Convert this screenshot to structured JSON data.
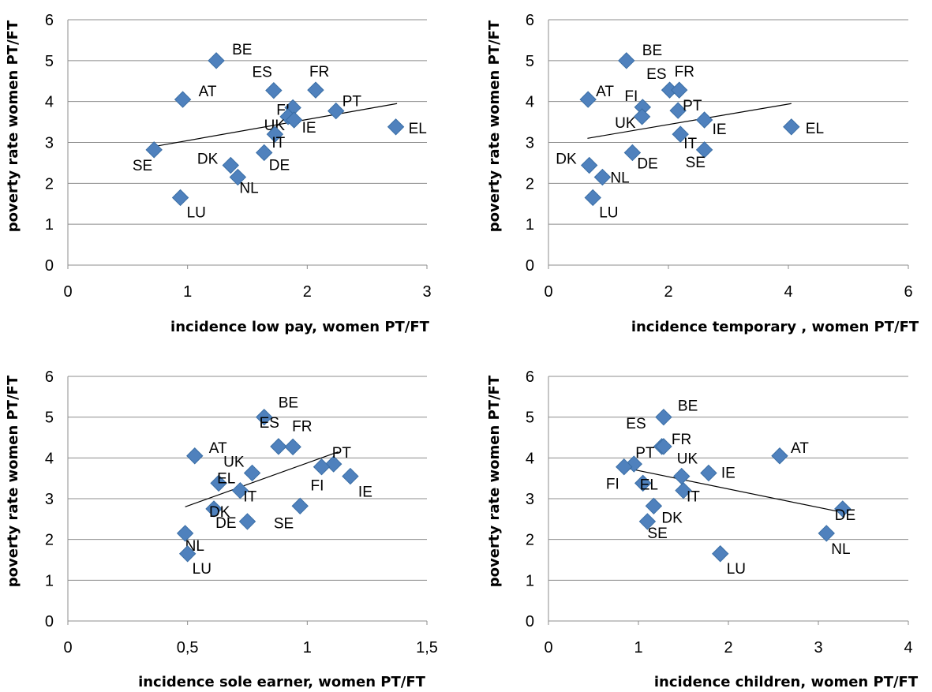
{
  "chart_data": [
    {
      "type": "scatter",
      "xlabel": "incidence low pay, women PT/FT",
      "ylabel": "poverty rate women PT/FT",
      "xlim": [
        0,
        3
      ],
      "ylim": [
        0,
        6
      ],
      "xticks": [
        "0",
        "1",
        "2",
        "3"
      ],
      "yticks": [
        "0",
        "1",
        "2",
        "3",
        "4",
        "5",
        "6"
      ],
      "grid": "horizontal",
      "trendline": [
        [
          0.72,
          2.9
        ],
        [
          2.75,
          3.95
        ]
      ],
      "points": [
        {
          "label": "BE",
          "x": 1.24,
          "y": 5.0
        },
        {
          "label": "AT",
          "x": 0.96,
          "y": 4.05
        },
        {
          "label": "ES",
          "x": 1.72,
          "y": 4.27
        },
        {
          "label": "FR",
          "x": 2.07,
          "y": 4.28
        },
        {
          "label": "FI",
          "x": 1.88,
          "y": 3.85
        },
        {
          "label": "PT",
          "x": 2.24,
          "y": 3.77
        },
        {
          "label": "UK",
          "x": 1.84,
          "y": 3.63
        },
        {
          "label": "IE",
          "x": 1.89,
          "y": 3.55
        },
        {
          "label": "EL",
          "x": 2.74,
          "y": 3.38
        },
        {
          "label": "IT",
          "x": 1.73,
          "y": 3.2
        },
        {
          "label": "SE",
          "x": 0.72,
          "y": 2.82
        },
        {
          "label": "DE",
          "x": 1.64,
          "y": 2.75
        },
        {
          "label": "DK",
          "x": 1.36,
          "y": 2.44
        },
        {
          "label": "NL",
          "x": 1.42,
          "y": 2.15
        },
        {
          "label": "LU",
          "x": 0.94,
          "y": 1.65
        }
      ]
    },
    {
      "type": "scatter",
      "xlabel": "incidence temporary , women PT/FT",
      "ylabel": "poverty rate women PT/FT",
      "xlim": [
        0,
        6
      ],
      "ylim": [
        0,
        6
      ],
      "xticks": [
        "0",
        "2",
        "4",
        "6"
      ],
      "yticks": [
        "0",
        "1",
        "2",
        "3",
        "4",
        "5",
        "6"
      ],
      "grid": "horizontal",
      "trendline": [
        [
          0.65,
          3.1
        ],
        [
          4.05,
          3.95
        ]
      ],
      "points": [
        {
          "label": "BE",
          "x": 1.3,
          "y": 5.0
        },
        {
          "label": "AT",
          "x": 0.66,
          "y": 4.05
        },
        {
          "label": "ES",
          "x": 2.02,
          "y": 4.28
        },
        {
          "label": "FR",
          "x": 2.18,
          "y": 4.28
        },
        {
          "label": "FI",
          "x": 1.57,
          "y": 3.86
        },
        {
          "label": "PT",
          "x": 2.16,
          "y": 3.78
        },
        {
          "label": "UK",
          "x": 1.56,
          "y": 3.63
        },
        {
          "label": "IE",
          "x": 2.6,
          "y": 3.55
        },
        {
          "label": "EL",
          "x": 4.05,
          "y": 3.38
        },
        {
          "label": "IT",
          "x": 2.2,
          "y": 3.2
        },
        {
          "label": "SE",
          "x": 2.6,
          "y": 2.82
        },
        {
          "label": "DE",
          "x": 1.4,
          "y": 2.75
        },
        {
          "label": "DK",
          "x": 0.68,
          "y": 2.44
        },
        {
          "label": "NL",
          "x": 0.9,
          "y": 2.15
        },
        {
          "label": "LU",
          "x": 0.74,
          "y": 1.65
        }
      ]
    },
    {
      "type": "scatter",
      "xlabel": "incidence sole earner, women PT/FT",
      "ylabel": "poverty rate women PT/FT",
      "xlim": [
        0,
        1.5
      ],
      "ylim": [
        0,
        6
      ],
      "xticks": [
        "0",
        "0,5",
        "1",
        "1,5"
      ],
      "yticks": [
        "0",
        "1",
        "2",
        "3",
        "4",
        "5",
        "6"
      ],
      "grid": "horizontal",
      "trendline": [
        [
          0.49,
          2.8
        ],
        [
          1.13,
          4.15
        ]
      ],
      "points": [
        {
          "label": "BE",
          "x": 0.82,
          "y": 5.0
        },
        {
          "label": "AT",
          "x": 0.53,
          "y": 4.05
        },
        {
          "label": "ES",
          "x": 0.88,
          "y": 4.28
        },
        {
          "label": "FR",
          "x": 0.94,
          "y": 4.27
        },
        {
          "label": "PT",
          "x": 1.11,
          "y": 3.85
        },
        {
          "label": "FI",
          "x": 1.06,
          "y": 3.78
        },
        {
          "label": "UK",
          "x": 0.77,
          "y": 3.63
        },
        {
          "label": "IE",
          "x": 1.18,
          "y": 3.55
        },
        {
          "label": "EL",
          "x": 0.63,
          "y": 3.38
        },
        {
          "label": "IT",
          "x": 0.72,
          "y": 3.2
        },
        {
          "label": "SE",
          "x": 0.97,
          "y": 2.82
        },
        {
          "label": "DK",
          "x": 0.61,
          "y": 2.75
        },
        {
          "label": "DE",
          "x": 0.75,
          "y": 2.44
        },
        {
          "label": "NL",
          "x": 0.49,
          "y": 2.15
        },
        {
          "label": "LU",
          "x": 0.5,
          "y": 1.65
        }
      ]
    },
    {
      "type": "scatter",
      "xlabel": "incidence children, women PT/FT",
      "ylabel": "poverty rate women PT/FT",
      "xlim": [
        0,
        4
      ],
      "ylim": [
        0,
        6
      ],
      "xticks": [
        "0",
        "1",
        "2",
        "3",
        "4"
      ],
      "yticks": [
        "0",
        "1",
        "2",
        "3",
        "4",
        "5",
        "6"
      ],
      "grid": "horizontal",
      "trendline": [
        [
          0.8,
          3.78
        ],
        [
          3.3,
          2.65
        ]
      ],
      "points": [
        {
          "label": "BE",
          "x": 1.28,
          "y": 5.0
        },
        {
          "label": "ES",
          "x": 1.26,
          "y": 4.28
        },
        {
          "label": "FR",
          "x": 1.28,
          "y": 4.28
        },
        {
          "label": "AT",
          "x": 2.57,
          "y": 4.05
        },
        {
          "label": "PT",
          "x": 0.95,
          "y": 3.85
        },
        {
          "label": "FI",
          "x": 0.84,
          "y": 3.78
        },
        {
          "label": "IE",
          "x": 1.78,
          "y": 3.63
        },
        {
          "label": "UK",
          "x": 1.48,
          "y": 3.55
        },
        {
          "label": "EL",
          "x": 1.05,
          "y": 3.38
        },
        {
          "label": "IT",
          "x": 1.5,
          "y": 3.2
        },
        {
          "label": "DK",
          "x": 1.17,
          "y": 2.82
        },
        {
          "label": "DE",
          "x": 3.27,
          "y": 2.75
        },
        {
          "label": "SE",
          "x": 1.1,
          "y": 2.44
        },
        {
          "label": "NL",
          "x": 3.09,
          "y": 2.15
        },
        {
          "label": "LU",
          "x": 1.91,
          "y": 1.65
        }
      ]
    }
  ]
}
